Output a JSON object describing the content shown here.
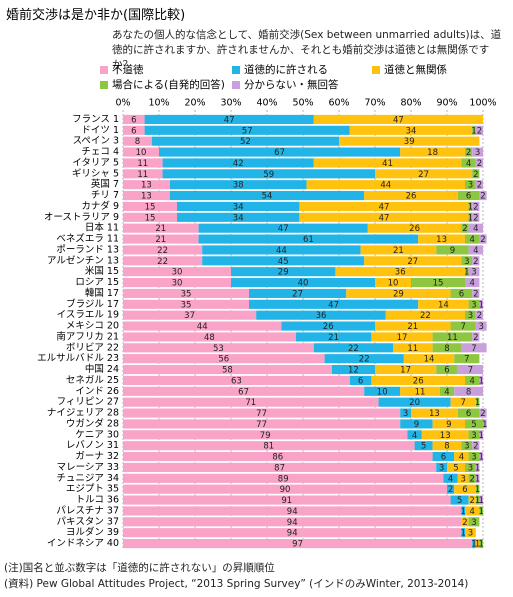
{
  "chart_data": {
    "type": "stacked-barh",
    "title": "婚前交渉は是か非か(国際比較)",
    "subtitle": "あなたの個人的な信念として、婚前交渉(Sex between unmarried adults)は、道徳的に許されますか、許されませんか、それとも婚前交渉は道徳とは無関係ですか？",
    "notes": [
      "(注)国名と並ぶ数字は「道徳的に許されない」の昇順順位",
      "(資料) Pew Global Attitudes Project, “2013 Spring Survey” (インドのみWinter, 2013-2014)"
    ],
    "categories": [
      "フランス 1",
      "ドイツ 1",
      "スペイン 3",
      "チェコ 4",
      "イタリア 5",
      "ギリシャ 5",
      "英国 7",
      "チリ 7",
      "カナダ 9",
      "オーストラリア 9",
      "日本 11",
      "ベネズエラ 11",
      "ポーランド 13",
      "アルゼンチン 13",
      "米国 15",
      "ロシア 15",
      "韓国 17",
      "ブラジル 17",
      "イスラエル 19",
      "メキシコ 20",
      "南アフリカ 21",
      "ボリビア 22",
      "エルサルバドル 23",
      "中国 24",
      "セネガル 25",
      "インド 26",
      "フィリピン 27",
      "ナイジェリア 28",
      "ウガンダ 28",
      "ケニア 30",
      "レバノン 31",
      "ガーナ 32",
      "マレーシア 33",
      "チュニジア 34",
      "エジプト 35",
      "トルコ 36",
      "パレスチナ 37",
      "パキスタン 37",
      "ヨルダン 39",
      "インドネシア 40"
    ],
    "series": [
      {
        "name": "不道徳",
        "color": "#f9a3c8",
        "values": [
          6,
          6,
          8,
          10,
          11,
          11,
          13,
          13,
          15,
          15,
          21,
          21,
          22,
          22,
          30,
          30,
          35,
          35,
          37,
          44,
          48,
          53,
          56,
          58,
          63,
          67,
          71,
          77,
          77,
          79,
          81,
          86,
          87,
          89,
          90,
          91,
          94,
          94,
          94,
          97
        ]
      },
      {
        "name": "道徳的に許される",
        "color": "#22b4e6",
        "values": [
          47,
          57,
          52,
          67,
          42,
          59,
          38,
          54,
          34,
          34,
          47,
          61,
          44,
          45,
          29,
          40,
          27,
          47,
          36,
          26,
          21,
          22,
          22,
          12,
          6,
          10,
          20,
          3,
          9,
          4,
          5,
          6,
          3,
          4,
          2,
          5,
          1,
          0,
          1,
          1
        ]
      },
      {
        "name": "道徳と無関係",
        "color": "#ffc20e",
        "values": [
          47,
          34,
          39,
          18,
          41,
          27,
          44,
          26,
          47,
          47,
          26,
          13,
          21,
          27,
          36,
          10,
          29,
          14,
          22,
          21,
          17,
          11,
          14,
          17,
          26,
          11,
          7,
          13,
          9,
          13,
          8,
          4,
          5,
          3,
          6,
          2,
          4,
          2,
          3,
          1
        ]
      },
      {
        "name": "場合による(自発的回答)",
        "color": "#8dc63f",
        "values": [
          0,
          1,
          0,
          2,
          4,
          2,
          3,
          6,
          1,
          1,
          2,
          4,
          9,
          3,
          1,
          15,
          6,
          3,
          3,
          7,
          11,
          8,
          7,
          6,
          4,
          4,
          1,
          6,
          5,
          3,
          3,
          3,
          3,
          2,
          1,
          1,
          1,
          3,
          0,
          1
        ]
      },
      {
        "name": "分からない・無回答",
        "color": "#c9a0dc",
        "values": [
          0,
          2,
          0,
          3,
          2,
          0,
          2,
          2,
          2,
          2,
          4,
          2,
          4,
          2,
          3,
          4,
          2,
          1,
          2,
          3,
          2,
          7,
          0,
          7,
          1,
          8,
          0,
          2,
          1,
          1,
          2,
          1,
          1,
          1,
          0,
          1,
          0,
          0,
          0,
          0
        ]
      }
    ],
    "xlim": [
      0,
      100
    ],
    "xticks": [
      {
        "value": 0,
        "label": "0%"
      },
      {
        "value": 10,
        "label": "10%"
      },
      {
        "value": 20,
        "label": "20%"
      },
      {
        "value": 30,
        "label": "30%"
      },
      {
        "value": 40,
        "label": "40%"
      },
      {
        "value": 50,
        "label": "50%"
      },
      {
        "value": 60,
        "label": "60%"
      },
      {
        "value": 70,
        "label": "70%"
      },
      {
        "value": 80,
        "label": "80%"
      },
      {
        "value": 90,
        "label": "90%"
      },
      {
        "value": 100,
        "label": "100%"
      }
    ],
    "grid": true
  }
}
